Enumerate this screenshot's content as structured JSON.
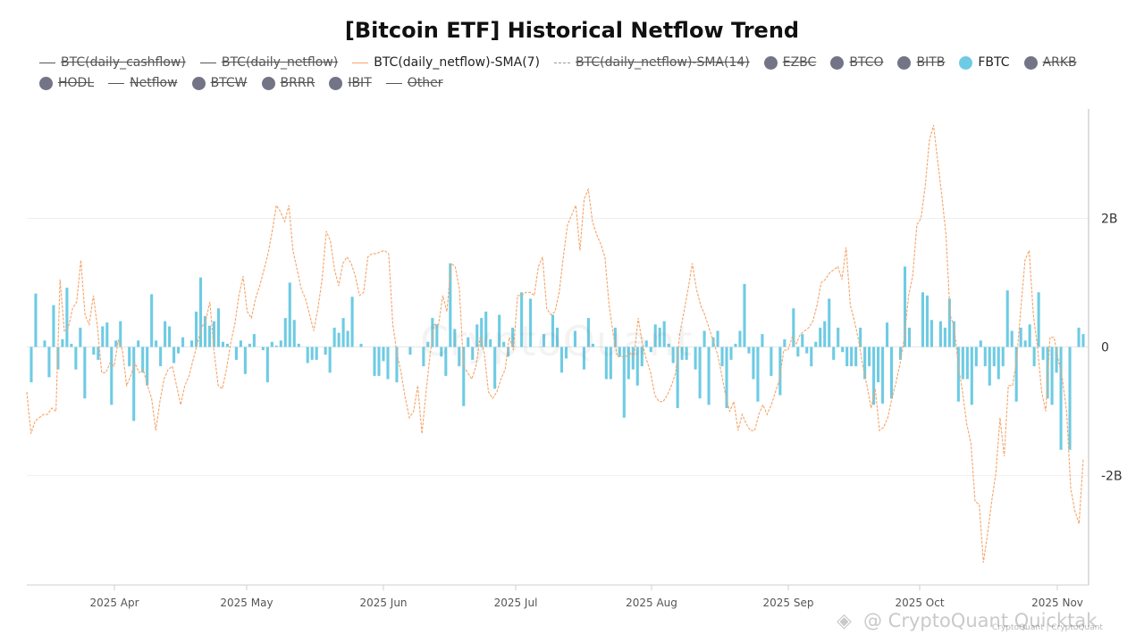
{
  "chart_data": {
    "type": "bar+line",
    "title": "[Bitcoin ETF] Historical Netflow Trend",
    "legend": [
      {
        "label": "BTC(daily_cashflow)",
        "symbol": "line",
        "active": false
      },
      {
        "label": "BTC(daily_netflow)",
        "symbol": "line",
        "active": false
      },
      {
        "label": "BTC(daily_netflow)-SMA(7)",
        "symbol": "line",
        "color": "#f4a46a",
        "active": true
      },
      {
        "label": "BTC(daily_netflow)-SMA(14)",
        "symbol": "dash",
        "active": false
      },
      {
        "label": "EZBC",
        "symbol": "dot",
        "active": false
      },
      {
        "label": "BTCO",
        "symbol": "dot",
        "active": false
      },
      {
        "label": "BITB",
        "symbol": "dot",
        "active": false
      },
      {
        "label": "FBTC",
        "symbol": "dot",
        "color": "#6ecbe3",
        "active": true
      },
      {
        "label": "ARKB",
        "symbol": "dot",
        "active": false
      },
      {
        "label": "HODL",
        "symbol": "dot",
        "active": false
      },
      {
        "label": "Netflow",
        "symbol": "line",
        "active": false
      },
      {
        "label": "BTCW",
        "symbol": "dot",
        "active": false
      },
      {
        "label": "BRRR",
        "symbol": "dot",
        "active": false
      },
      {
        "label": "IBIT",
        "symbol": "dot",
        "active": false
      },
      {
        "label": "Other",
        "symbol": "line",
        "active": false
      }
    ],
    "x_labels": [
      "2025 Apr",
      "2025 May",
      "2025 Jun",
      "2025 Jul",
      "2025 Aug",
      "2025 Sep",
      "2025 Oct",
      "2025 Nov"
    ],
    "y_ticks": [
      {
        "value": 2000000000,
        "label": "2B"
      },
      {
        "value": 0,
        "label": "0"
      },
      {
        "value": -2000000000,
        "label": "-2B"
      }
    ],
    "ylim": [
      -3700000000,
      3700000000
    ],
    "y_axis_side": "right",
    "grid": true,
    "series": [
      {
        "name": "FBTC",
        "type": "bar",
        "color": "#6ecbe3",
        "values": [
          -0.55,
          0.83,
          0,
          0.1,
          -0.47,
          0.65,
          -0.35,
          0.12,
          0.92,
          0.05,
          -0.35,
          0.3,
          -0.8,
          0,
          -0.12,
          -0.2,
          0.32,
          0.38,
          -0.9,
          0.1,
          0.4,
          0,
          -0.3,
          -1.15,
          0.1,
          -0.4,
          -0.6,
          0.82,
          0.1,
          -0.3,
          0.4,
          0.32,
          -0.25,
          -0.1,
          0.15,
          0,
          0.1,
          0.55,
          1.08,
          0.48,
          0.33,
          0.4,
          0.6,
          0.08,
          0.05,
          0,
          -0.2,
          0.1,
          -0.42,
          0.05,
          0.2,
          0,
          -0.05,
          -0.55,
          0.08,
          0.02,
          0.1,
          0.45,
          1,
          0.42,
          0.05,
          0,
          -0.25,
          -0.2,
          -0.2,
          0,
          -0.12,
          -0.4,
          0.3,
          0.22,
          0.45,
          0.25,
          0.78,
          0,
          0.05,
          0,
          0,
          -0.45,
          -0.45,
          -0.22,
          -0.5,
          0,
          -0.55,
          0,
          0,
          -0.12,
          0,
          0,
          -0.3,
          0.08,
          0.45,
          0.35,
          -0.15,
          -0.45,
          1.3,
          0.28,
          -0.3,
          -0.92,
          0.15,
          -0.2,
          0.35,
          0.45,
          0.55,
          0.12,
          -0.65,
          0.5,
          0.08,
          -0.15,
          0.3,
          0,
          0.85,
          0,
          0.75,
          0,
          0,
          0.2,
          0,
          0.5,
          0.3,
          -0.4,
          -0.18,
          0,
          0.25,
          0,
          -0.35,
          0.45,
          0.05,
          0,
          0,
          -0.5,
          -0.5,
          0.3,
          -0.15,
          -1.1,
          -0.5,
          -0.35,
          -0.6,
          -0.3,
          0.1,
          -0.08,
          0.35,
          0.3,
          0.4,
          0.05,
          -0.25,
          -0.95,
          -0.2,
          -0.2,
          0,
          -0.35,
          -0.8,
          0.25,
          -0.9,
          0.15,
          0.25,
          -0.3,
          -0.95,
          -0.2,
          0.05,
          0.25,
          0.98,
          -0.1,
          -0.5,
          -0.85,
          0.2,
          0,
          -0.45,
          0,
          -0.75,
          0.12,
          0,
          0.6,
          -0.15,
          0.2,
          -0.1,
          -0.3,
          0.08,
          0.3,
          0.4,
          0.75,
          -0.2,
          0.3,
          -0.08,
          -0.3,
          -0.3,
          -0.3,
          0.3,
          -0.5,
          -0.3,
          -0.9,
          -0.55,
          -0.88,
          0.38,
          -0.8,
          0,
          -0.2,
          1.25,
          0.3,
          0,
          0,
          0.85,
          0.8,
          0.42,
          0,
          0.4,
          0.3,
          0.75,
          0.4,
          -0.85,
          -0.5,
          -0.5,
          -0.9,
          -0.3,
          0.1,
          -0.3,
          -0.6,
          -0.3,
          -0.5,
          -0.3,
          0.88,
          0.25,
          -0.85,
          0.3,
          0.1,
          0.35,
          -0.3,
          0.85,
          -0.2,
          -0.8,
          -0.9,
          -0.4,
          -1.6,
          0,
          -1.6,
          0,
          0.3,
          0.2
        ]
      },
      {
        "name": "BTC(daily_netflow)-SMA(7)",
        "type": "line",
        "color": "#f4a46a",
        "values": [
          -0.7,
          -1.35,
          -1.15,
          -1.1,
          -1.05,
          -1.05,
          -0.95,
          -1,
          1.05,
          0.25,
          0.3,
          0.6,
          0.7,
          1.35,
          0.5,
          0.35,
          0.8,
          0.3,
          -0.4,
          -0.4,
          -0.25,
          -0.3,
          0.1,
          -0.05,
          -0.6,
          -0.45,
          -0.25,
          -0.4,
          -0.35,
          -0.6,
          -0.8,
          -1.3,
          -0.85,
          -0.5,
          -0.35,
          -0.3,
          -0.6,
          -0.9,
          -0.6,
          -0.45,
          -0.2,
          0.05,
          0.3,
          0.4,
          0.7,
          -0.05,
          -0.6,
          -0.65,
          -0.35,
          0.05,
          0.35,
          0.8,
          1.1,
          0.55,
          0.45,
          0.75,
          0.95,
          1.2,
          1.45,
          1.8,
          2.2,
          2.1,
          1.95,
          2.2,
          1.5,
          1.2,
          0.9,
          0.75,
          0.5,
          0.25,
          0.6,
          1.05,
          1.8,
          1.65,
          1.2,
          0.95,
          1.3,
          1.4,
          1.3,
          1.1,
          0.8,
          0.85,
          1.4,
          1.45,
          1.45,
          1.48,
          1.5,
          1.45,
          0.35,
          -0.1,
          -0.4,
          -0.8,
          -1.1,
          -1,
          -0.6,
          -1.35,
          -0.7,
          -0.1,
          0.35,
          0.35,
          0.8,
          0.55,
          1.3,
          1.25,
          0.9,
          -0.3,
          -0.4,
          -0.5,
          -0.3,
          0.15,
          -0.1,
          -0.7,
          -0.8,
          -0.7,
          -0.5,
          -0.35,
          0.15,
          -0.05,
          0.8,
          0.8,
          0.85,
          0.85,
          0.8,
          1.25,
          1.4,
          0.6,
          0.5,
          0.55,
          0.85,
          1.4,
          1.9,
          2.05,
          2.2,
          1.5,
          2.3,
          2.45,
          1.95,
          1.75,
          1.6,
          1.4,
          0.65,
          0.2,
          -0.15,
          -0.15,
          -0.15,
          -0.1,
          -0.15,
          0.45,
          0.05,
          -0.2,
          -0.4,
          -0.75,
          -0.85,
          -0.85,
          -0.75,
          -0.6,
          -0.4,
          0.2,
          0.55,
          0.9,
          1.3,
          0.9,
          0.65,
          0.5,
          0.3,
          0.1,
          -0.1,
          -0.4,
          -0.75,
          -1,
          -0.85,
          -1.3,
          -1.05,
          -1.2,
          -1.3,
          -1.3,
          -1.05,
          -0.9,
          -1.05,
          -0.9,
          -0.7,
          -0.5,
          -0.05,
          -0.05,
          0.15,
          0.05,
          0.2,
          0.25,
          0.3,
          0.4,
          0.65,
          1,
          1.05,
          1.15,
          1.2,
          1.25,
          1.05,
          1.55,
          0.65,
          0.4,
          0.1,
          -0.3,
          -0.6,
          -0.95,
          -0.65,
          -1.3,
          -1.25,
          -1.1,
          -0.8,
          -0.55,
          -0.25,
          0.15,
          0.8,
          1.1,
          1.9,
          2,
          2.5,
          3.2,
          3.45,
          2.9,
          2.35,
          1.75,
          0.5,
          0.3,
          -0.3,
          -0.7,
          -1.2,
          -1.5,
          -2.4,
          -2.45,
          -3.35,
          -2.9,
          -2.4,
          -1.95,
          -1.1,
          -1.7,
          -0.6,
          -0.6,
          -0.2,
          0.6,
          1.35,
          1.5,
          0.5,
          0,
          -0.7,
          -1,
          0.15,
          0.15,
          -0.2,
          -0.5,
          -1,
          -2.2,
          -2.55,
          -2.75,
          -1.75
        ]
      }
    ]
  },
  "watermark": "CryptoQuant",
  "footer": {
    "attribution": "@ CryptoQuant Quicktak",
    "small_text": "CryptoQuant | CryptoQuant"
  }
}
